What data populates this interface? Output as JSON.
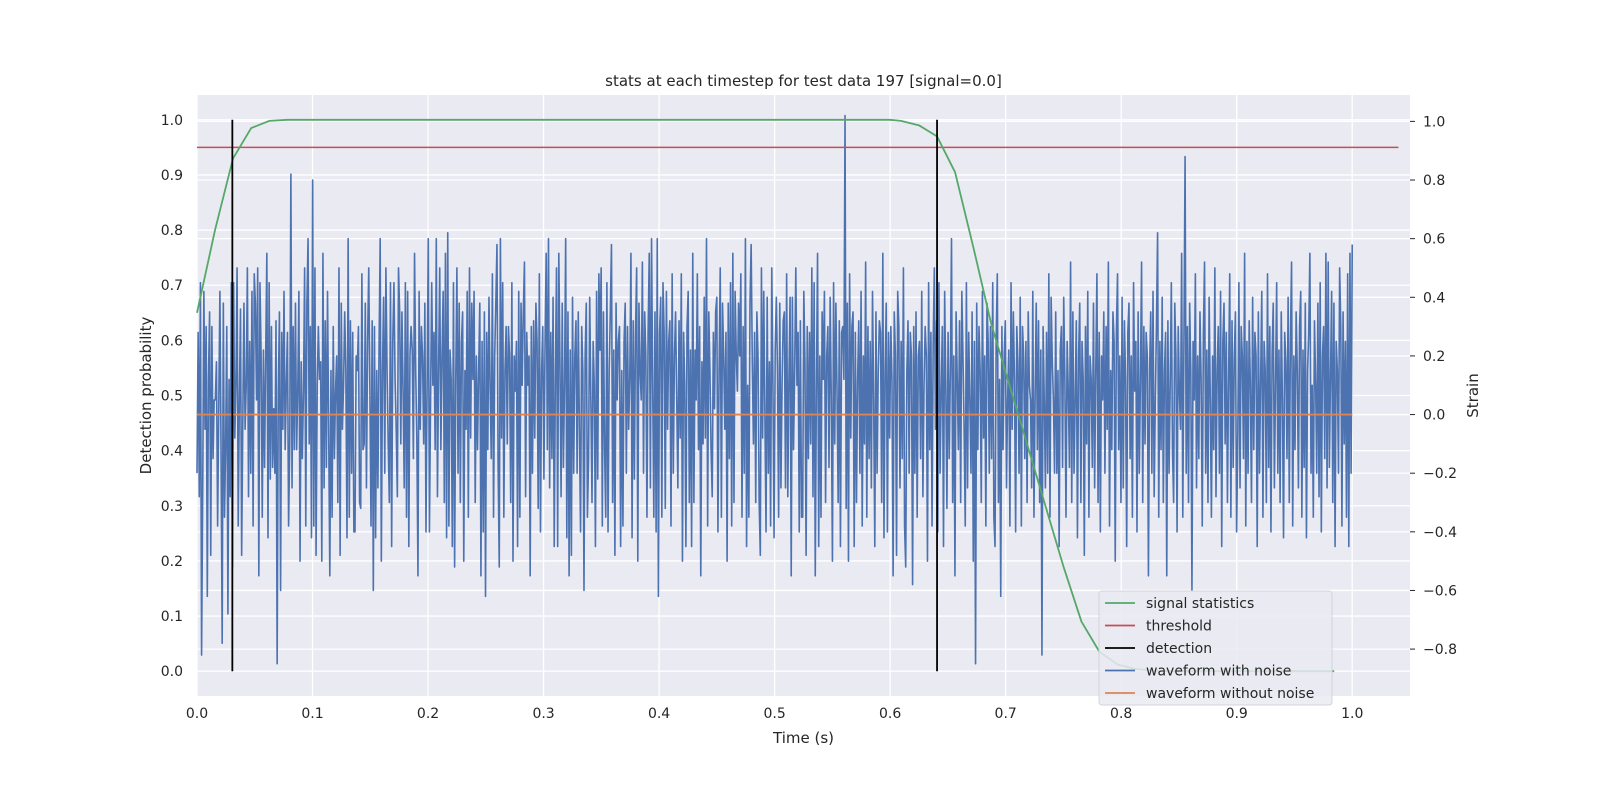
{
  "chart_data": {
    "type": "line",
    "title": "stats at each timestep for test data 197 [signal=0.0]",
    "xlabel": "Time (s)",
    "ylabel_left": "Detection probability",
    "ylabel_right": "Strain",
    "xlim": [
      0.0,
      1.05
    ],
    "ylim_left": [
      -0.045,
      1.045
    ],
    "ylim_right": [
      -0.96,
      1.09
    ],
    "x_ticks": [
      "0.0",
      "0.1",
      "0.2",
      "0.3",
      "0.4",
      "0.5",
      "0.6",
      "0.7",
      "0.8",
      "0.9",
      "1.0"
    ],
    "y_left_ticks": [
      "0.0",
      "0.1",
      "0.2",
      "0.3",
      "0.4",
      "0.5",
      "0.6",
      "0.7",
      "0.8",
      "0.9",
      "1.0"
    ],
    "y_right_ticks": [
      "−0.8",
      "−0.6",
      "−0.4",
      "−0.2",
      "0.0",
      "0.2",
      "0.4",
      "0.6",
      "0.8",
      "1.0"
    ],
    "grid": true,
    "legend_position": "lower-right",
    "colors": {
      "background": "#eaeaf2",
      "grid": "#ffffff",
      "signal": "#55a868",
      "threshold": "#c44e52",
      "detection": "#000000",
      "noisy": "#4c72b0",
      "clean": "#dd8452"
    },
    "series": [
      {
        "name": "signal statistics",
        "axis": "left",
        "x": [
          0.0,
          0.0156,
          0.0312,
          0.0469,
          0.0625,
          0.0781,
          0.1,
          0.2,
          0.3,
          0.4,
          0.5,
          0.6,
          0.6094,
          0.625,
          0.6406,
          0.6562,
          0.6719,
          0.6875,
          0.7031,
          0.7188,
          0.7344,
          0.75,
          0.7656,
          0.7812,
          0.7969,
          0.8125,
          0.8281,
          0.8438,
          0.8594,
          0.875,
          0.8906,
          0.9062,
          0.9219,
          0.9375,
          0.9531,
          0.9688,
          0.9844
        ],
        "y": [
          0.65,
          0.8,
          0.93,
          0.985,
          0.998,
          1.0,
          1.0,
          1.0,
          1.0,
          1.0,
          1.0,
          1.0,
          0.998,
          0.99,
          0.97,
          0.905,
          0.77,
          0.63,
          0.52,
          0.41,
          0.3,
          0.19,
          0.09,
          0.035,
          0.012,
          0.004,
          0.001,
          0.0,
          0.0,
          0.0,
          0.0,
          0.0,
          0.0,
          0.0,
          0.0,
          0.0,
          0.0
        ]
      },
      {
        "name": "threshold",
        "axis": "left",
        "x": [
          0.0,
          1.04
        ],
        "y": [
          0.95,
          0.95
        ]
      },
      {
        "name": "detection",
        "axis": "left",
        "vlines": [
          0.0306,
          0.6406
        ],
        "ymin": 0.0,
        "ymax": 1.0
      },
      {
        "name": "waveform with noise",
        "axis": "right",
        "x_start": 0.0,
        "x_end": 1.0,
        "y": [
          -0.2,
          0.28,
          -0.28,
          0.45,
          -0.82,
          -0.25,
          0.42,
          -0.05,
          0.3,
          -0.62,
          0.12,
          0.35,
          -0.48,
          0.3,
          -0.15,
          0.05,
          0.05,
          0.18,
          -0.38,
          0.02,
          0.42,
          -0.12,
          -0.78,
          0.38,
          -0.35,
          -0.12,
          0.3,
          -0.68,
          0.12,
          -0.28,
          0.45,
          -0.52,
          0.45,
          -0.08,
          0.1,
          0.5,
          -0.38,
          0.05,
          0.36,
          -0.48,
          -0.02,
          0.38,
          -0.05,
          0.1,
          0.5,
          -0.28,
          0.25,
          -0.2,
          0.42,
          -0.38,
          0.48,
          0.38,
          0.05,
          0.5,
          -0.55,
          0.45,
          0.2,
          -0.35,
          0.22,
          -0.18,
          0.2,
          0.55,
          -0.42,
          0.45,
          -0.22,
          0.3,
          -0.18,
          0.02,
          -0.2,
          0.32,
          -0.85,
          0.08,
          0.35,
          -0.6,
          0.28,
          -0.05,
          0.42,
          -0.12,
          0.1,
          0.28,
          -0.38,
          -0.1,
          0.82,
          -0.25,
          0.3,
          -0.12,
          0.38,
          -0.12,
          0.08,
          0.42,
          -0.5,
          0.18,
          -0.15,
          0.08,
          0.5,
          -0.38,
          0.38,
          0.6,
          -0.1,
          0.3,
          -0.42,
          0.8,
          -0.38,
          0.5,
          -0.48,
          0.1,
          0.3,
          0.12,
          0.18,
          -0.5,
          0.55,
          -0.25,
          0.32,
          -0.18,
          0.42,
          -0.05,
          -0.55,
          0.15,
          -0.35,
          0.3,
          -0.15,
          0.08,
          0.2,
          -0.3,
          0.5,
          -0.48,
          0.38,
          -0.05,
          0.1,
          0.35,
          0.15,
          -0.42,
          0.6,
          -0.35,
          0.32,
          -0.2,
          0.28,
          -0.4,
          -0.4,
          0.2,
          0.15,
          0.3,
          -0.3,
          -0.32,
          0.48,
          -0.12,
          -0.1,
          0.38,
          -0.25,
          0.25,
          0.5,
          0.08,
          -0.38,
          0.32,
          -0.6,
          0.3,
          -0.42,
          0.15,
          -0.25,
          0.22,
          0.6,
          -0.5,
          0.15,
          0.4,
          -0.2,
          0.5,
          0.15,
          -0.1,
          -0.3,
          0.45,
          -0.45,
          0.25,
          0.45,
          0.12,
          -0.05,
          -0.28,
          0.5,
          0.35,
          -0.1,
          0.35,
          0.08,
          -0.25,
          0.45,
          -0.35,
          0.42,
          -0.45,
          0.2,
          0.3,
          0.22,
          -0.15,
          0.55,
          0.15,
          -0.08,
          -0.55,
          0.42,
          -0.05,
          0.3,
          0.2,
          -0.1,
          0.38,
          -0.4,
          0.1,
          0.6,
          -0.4,
          0.05,
          0.45,
          0.1,
          0.28,
          -0.12,
          0.6,
          -0.28,
          0.15,
          0.5,
          -0.12,
          0.2,
          0.42,
          -0.3,
          0.55,
          -0.42,
          0.62,
          -0.38,
          0.22,
          0.12,
          -0.45,
          0.45,
          -0.52,
          0.12,
          0.5,
          -0.2,
          0.38,
          -0.3,
          0.25,
          0.35,
          -0.5,
          0.15,
          -0.05,
          0.42,
          -0.35,
          0.5,
          -0.08,
          0.38,
          0.12,
          0.42,
          -0.3,
          0.2,
          -0.12,
          0.15,
          0.38,
          -0.55,
          0.25,
          -0.4,
          0.35,
          -0.62,
          0.28,
          -0.12,
          0.4,
          0.1,
          -0.15,
          0.48,
          -0.35,
          0.2,
          0.38,
          0.58,
          -0.18,
          -0.52,
          0.6,
          -0.08,
          0.45,
          -0.35,
          0.15,
          0.3,
          -0.1,
          0.3,
          0.2,
          -0.3,
          0.45,
          -0.5,
          0.2,
          0.08,
          0.25,
          -0.45,
          0.42,
          -0.35,
          0.38,
          0.1,
          0.35,
          0.52,
          -0.28,
          0.28,
          0.1,
          0.2,
          -0.55,
          0.3,
          -0.2,
          0.32,
          -0.08,
          0.38,
          0.25,
          -0.32,
          0.48,
          -0.4,
          0.15,
          0.3,
          -0.22,
          0.25,
          0.55,
          -0.12,
          0.6,
          -0.25,
          0.28,
          -0.15,
          0.4,
          -0.45,
          0.12,
          0.5,
          -0.45,
          0.55,
          0.18,
          -0.28,
          0.38,
          -0.18,
          0.1,
          0.6,
          -0.42,
          0.35,
          -0.55,
          0.22,
          -0.48,
          0.4,
          -0.2,
          0.2,
          0.32,
          -0.2,
          0.35,
          -0.05,
          -0.4,
          0.3,
          0.15,
          -0.6,
          0.2,
          0.38,
          -0.35,
          -0.15,
          0.4,
          0.05,
          -0.3,
          0.25,
          0.1,
          -0.45,
          0.42,
          -0.22,
          0.48,
          0.22,
          0.5,
          -0.38,
          0.35,
          -0.12,
          -0.35,
          0.45,
          -0.4,
          0.15,
          0.35,
          0.58,
          -0.3,
          0.22,
          -0.48,
          0.38,
          0.05,
          0.25,
          0.3,
          -0.45,
          0.15,
          -0.38,
          0.25,
          0.38,
          -0.2,
          0.3,
          -0.05,
          0.12,
          0.55,
          -0.42,
          0.32,
          -0.22,
          0.28,
          0.5,
          -0.5,
          0.38,
          0.15,
          0.05,
          0.52,
          -0.2,
          0.35,
          0.2,
          -0.35,
          0.28,
          0.55,
          -0.25,
          0.6,
          0.1,
          -0.35,
          0.35,
          -0.4,
          0.6,
          -0.62,
          0.28,
          0.4,
          -0.35,
          0.45,
          0.28,
          -0.32,
          0.42,
          -0.05,
          0.25,
          0.32,
          -0.38,
          0.48,
          -0.2,
          0.2,
          0.35,
          0.05,
          -0.25,
          0.32,
          -0.08,
          0.48,
          -0.5,
          0.28,
          0.1,
          -0.45,
          0.3,
          0.42,
          -0.3,
          0.22,
          -0.45,
          0.55,
          -0.3,
          0.22,
          0.05,
          0.48,
          -0.12,
          0.3,
          -0.55,
          0.18,
          -0.1,
          0.4,
          -0.08,
          0.6,
          -0.38,
          0.35,
          0.15,
          -0.12,
          -0.28,
          0.28,
          0.02,
          0.35,
          0.4,
          -0.4,
          0.15,
          0.5,
          -0.35,
          0.38,
          0.2,
          -0.05,
          0.28,
          -0.5,
          0.38,
          -0.15,
          0.45,
          -0.38,
          0.55,
          -0.3,
          0.42,
          0.2,
          0.08,
          0.38,
          0.2,
          0.48,
          -0.35,
          0.3,
          -0.2,
          0.6,
          -0.45,
          0.1,
          -0.35,
          0.38,
          0.58,
          0.18,
          -0.1,
          0.28,
          -0.3,
          0.35,
          0.2,
          -0.3,
          -0.48,
          0.5,
          -0.08,
          0.42,
          0.0,
          -0.4,
          0.4,
          -0.2,
          0.18,
          -0.38,
          0.5,
          0.12,
          -0.42,
          0.22,
          0.4,
          0.15,
          -0.35,
          0.38,
          -0.25,
          0.1,
          0.32,
          0.35,
          -0.25,
          0.48,
          -0.28,
          0.12,
          0.4,
          -0.55,
          0.4,
          -0.12,
          0.15,
          0.5,
          0.1,
          0.28,
          -0.4,
          0.32,
          -0.35,
          -0.35,
          0.42,
          0.18,
          -0.48,
          0.3,
          -0.15,
          0.28,
          -0.1,
          0.5,
          -0.28,
          0.45,
          -0.55,
          0.1,
          0.55,
          -0.45,
          0.2,
          -0.35,
          0.35,
          0.12,
          0.42,
          -0.3,
          0.2,
          0.3,
          -0.18,
          0.4,
          0.05,
          -0.5,
          0.45,
          -0.1,
          0.38,
          0.08,
          -0.3,
          0.32,
          -0.45,
          0.28,
          0.3,
          0.12,
          1.02,
          -0.32,
          0.38,
          -0.5,
          0.48,
          -0.08,
          0.3,
          0.35,
          -0.45,
          0.28,
          -0.3,
          0.12,
          0.32,
          -0.2,
          0.42,
          -0.38,
          0.2,
          -0.1,
          0.52,
          -0.35,
          0.3,
          -0.15,
          0.25,
          -0.25,
          0.42,
          0.05,
          -0.45,
          0.35,
          -0.2,
          0.15,
          0.32,
          0.28,
          -0.3,
          0.55,
          -0.42,
          0.15,
          0.38,
          -0.4,
          0.28,
          -0.08,
          0.3,
          0.12,
          -0.55,
          0.35,
          0.2,
          -0.48,
          0.42,
          0.3,
          -0.25,
          0.25,
          -0.15,
          0.5,
          -0.38,
          -0.52,
          0.15,
          0.32,
          -0.2,
          0.28,
          0.2,
          -0.58,
          0.3,
          -0.2,
          0.35,
          -0.35,
          0.2,
          0.25,
          -0.15,
          0.42,
          -0.28,
          0.1,
          0.3,
          0.2,
          -0.5,
          0.45,
          -0.12,
          0.28,
          -0.38,
          0.25,
          0.5,
          -0.05,
          0.32,
          -0.4,
          0.45,
          -0.2,
          0.08,
          0.3,
          -0.45,
          0.42,
          0.1,
          -0.32,
          0.28,
          -0.15,
          0.15,
          0.6,
          -0.3,
          0.2,
          -0.55,
          0.35,
          0.12,
          -0.12,
          0.32,
          -0.3,
          0.42,
          0.2,
          -0.05,
          -0.38,
          0.45,
          -0.25,
          0.28,
          0.05,
          -0.2,
          0.35,
          -0.5,
          0.25,
          -0.85,
          0.38,
          -0.12,
          0.3,
          0.15,
          -0.3,
          0.42,
          -0.08,
          0.2,
          -0.38,
          0.38,
          0.25,
          -0.2,
          0.3,
          -0.15,
          0.45,
          -0.35,
          -0.45,
          0.25,
          0.48,
          -0.3,
          0.12,
          -0.62,
          0.3,
          -0.12,
          0.2,
          0.32,
          -0.25,
          0.05,
          0.22,
          -0.38,
          0.45,
          -0.05,
          0.35,
          0.12,
          -0.4,
          0.3,
          0.18,
          -0.2,
          0.4,
          -0.38,
          0.3,
          0.2,
          -0.15,
          0.25,
          -0.3,
          0.35,
          0.1,
          0.05,
          -0.25,
          0.42,
          -0.35,
          0.05,
          0.38,
          -0.12,
          0.32,
          -0.3,
          0.22,
          -0.82,
          0.3,
          0.05,
          -0.25,
          0.28,
          -0.2,
          0.48,
          -0.35,
          0.4,
          0.18,
          0.05,
          -0.2,
          0.35,
          -0.2,
          0.15,
          -0.45,
          0.22,
          0.3,
          -0.18,
          0.4,
          0.12,
          -0.35,
          0.25,
          0.08,
          -0.18,
          0.52,
          -0.3,
          0.35,
          -0.2,
          0.05,
          0.32,
          -0.42,
          0.2,
          0.38,
          -0.3,
          0.25,
          0.12,
          -0.48,
          0.3,
          -0.1,
          0.42,
          -0.35,
          0.2,
          0.12,
          -0.18,
          0.38,
          -0.25,
          0.15,
          0.48,
          -0.3,
          0.28,
          -0.4,
          0.2,
          0.05,
          0.35,
          -0.2,
          0.3,
          -0.05,
          0.52,
          -0.38,
          0.15,
          -0.12,
          0.35,
          0.25,
          -0.5,
          0.28,
          0.48,
          -0.12,
          0.2,
          -0.3,
          0.4,
          -0.25,
          0.32,
          0.12,
          -0.45,
          0.28,
          0.38,
          -0.15,
          0.2,
          -0.35,
          0.45,
          0.08,
          0.25,
          -0.4,
          0.35,
          -0.2,
          0.12,
          0.52,
          -0.3,
          0.3,
          -0.1,
          0.28,
          0.2,
          -0.55,
          0.15,
          0.35,
          -0.2,
          0.42,
          -0.28,
          0.05,
          0.3,
          0.62,
          -0.35,
          0.25,
          -0.12,
          0.4,
          -0.3,
          0.15,
          0.28,
          -0.55,
          0.32,
          -0.2,
          0.1,
          0.45,
          -0.12,
          -0.3,
          0.38,
          0.2,
          -0.4,
          0.3,
          0.08,
          -0.05,
          0.55,
          -0.35,
          0.25,
          0.88,
          -0.2,
          0.3,
          -0.3,
          0.38,
          0.15,
          -0.6,
          0.25,
          0.05,
          0.48,
          -0.25,
          0.2,
          -0.15,
          0.35,
          0.12,
          -0.38,
          0.28,
          0.52,
          -0.2,
          0.22,
          -0.3,
          0.4,
          0.05,
          -0.35,
          0.2,
          -0.12,
          0.5,
          -0.28,
          0.15,
          0.3,
          -0.2,
          0.42,
          -0.45,
          0.25,
          0.38,
          -0.1,
          0.28,
          -0.3,
          0.12,
          0.48,
          -0.35,
          0.32,
          -0.18,
          0.2,
          0.35,
          -0.4,
          -0.1,
          0.45,
          -0.25,
          0.3,
          0.2,
          -0.15,
          0.55,
          -0.38,
          0.25,
          -0.2,
          0.32,
          0.1,
          -0.3,
          0.4,
          -0.12,
          0.28,
          0.2,
          -0.45,
          0.35,
          -0.2,
          0.12,
          0.42,
          -0.35,
          0.25,
          0.15,
          -0.3,
          0.48,
          -0.18,
          0.3,
          -0.4,
          0.2,
          0.38,
          -0.25,
          0.1,
          0.45,
          -0.2,
          0.22,
          -0.3,
          0.35,
          0.05,
          -0.42,
          0.28,
          0.18,
          -0.15,
          0.4,
          -0.3,
          0.25,
          0.52,
          -0.38,
          0.2,
          -0.12,
          0.35,
          0.15,
          -0.25,
          0.3,
          0.42,
          -0.35,
          0.22,
          -0.18,
          0.38,
          -0.42,
          0.15,
          0.28,
          0.55,
          -0.2,
          0.1,
          -0.35,
          0.32,
          0.12,
          -0.2,
          0.38,
          -0.28,
          0.45,
          -0.4,
          0.2,
          0.3,
          -0.15,
          0.55,
          -0.25,
          0.52,
          -0.18,
          0.12,
          0.42,
          -0.3,
          0.38,
          -0.45,
          0.25,
          0.15,
          -0.2,
          0.5,
          0.3,
          -0.38,
          0.35,
          -0.1,
          0.25,
          -0.35,
          0.48,
          -0.45,
          0.55,
          -0.2,
          0.58
        ]
      },
      {
        "name": "waveform without noise",
        "axis": "right",
        "x": [
          0.0,
          1.0
        ],
        "y": [
          0.0,
          0.0
        ]
      }
    ],
    "legend": [
      "signal statistics",
      "threshold",
      "detection",
      "waveform with noise",
      "waveform without noise"
    ]
  }
}
